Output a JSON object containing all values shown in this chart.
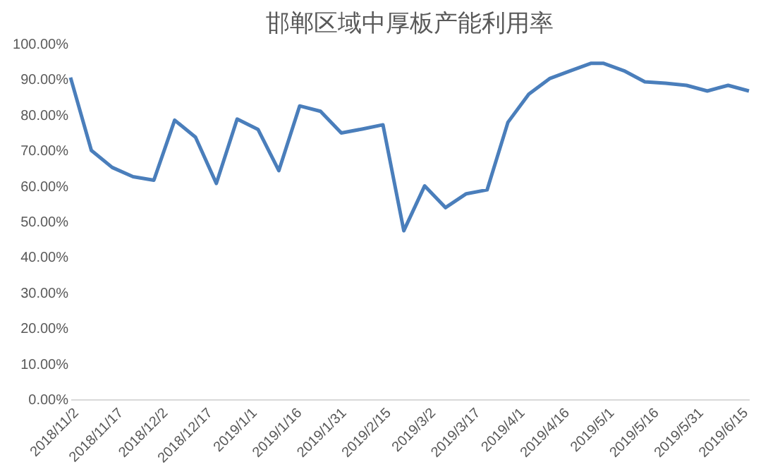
{
  "chart_data": {
    "type": "line",
    "title": "邯郸区域中厚板产能利用率",
    "x": [
      "2018-11-02",
      "2018-11-09",
      "2018-11-16",
      "2018-11-23",
      "2018-11-30",
      "2018-12-07",
      "2018-12-14",
      "2018-12-21",
      "2018-12-28",
      "2019-01-04",
      "2019-01-11",
      "2019-01-18",
      "2019-01-25",
      "2019-02-01",
      "2019-02-08",
      "2019-02-15",
      "2019-02-22",
      "2019-03-01",
      "2019-03-08",
      "2019-03-15",
      "2019-03-22",
      "2019-03-29",
      "2019-04-05",
      "2019-04-12",
      "2019-04-19",
      "2019-04-26",
      "2019-04-30",
      "2019-05-07",
      "2019-05-14",
      "2019-05-21",
      "2019-05-28",
      "2019-06-04",
      "2019-06-11",
      "2019-06-18"
    ],
    "series": [
      {
        "color": "#4a7ebb",
        "values": [
          90.5,
          70.0,
          65.2,
          62.6,
          61.6,
          78.5,
          73.7,
          60.7,
          78.8,
          75.9,
          64.3,
          82.5,
          81.0,
          74.9,
          76.0,
          77.2,
          47.4,
          60.0,
          53.9,
          57.8,
          58.9,
          77.9,
          85.8,
          90.2,
          92.4,
          94.5,
          94.5,
          92.4,
          89.3,
          88.9,
          88.3,
          86.7,
          88.3,
          86.7
        ]
      }
    ],
    "xlim": [
      "2018-11-02",
      "2019-06-18"
    ],
    "xticks": [
      {
        "value": "2018-11-02",
        "label": "2018/11/2"
      },
      {
        "value": "2018-11-17",
        "label": "2018/11/17"
      },
      {
        "value": "2018-12-02",
        "label": "2018/12/2"
      },
      {
        "value": "2018-12-17",
        "label": "2018/12/17"
      },
      {
        "value": "2019-01-01",
        "label": "2019/1/1"
      },
      {
        "value": "2019-01-16",
        "label": "2019/1/16"
      },
      {
        "value": "2019-01-31",
        "label": "2019/1/31"
      },
      {
        "value": "2019-02-15",
        "label": "2019/2/15"
      },
      {
        "value": "2019-03-02",
        "label": "2019/3/2"
      },
      {
        "value": "2019-03-17",
        "label": "2019/3/17"
      },
      {
        "value": "2019-04-01",
        "label": "2019/4/1"
      },
      {
        "value": "2019-04-16",
        "label": "2019/4/16"
      },
      {
        "value": "2019-05-01",
        "label": "2019/5/1"
      },
      {
        "value": "2019-05-16",
        "label": "2019/5/16"
      },
      {
        "value": "2019-05-31",
        "label": "2019/5/31"
      },
      {
        "value": "2019-06-15",
        "label": "2019/6/15"
      }
    ],
    "ylim": [
      0,
      100
    ],
    "yticks": [
      {
        "value": 0,
        "label": "0.00%"
      },
      {
        "value": 10,
        "label": "10.00%"
      },
      {
        "value": 20,
        "label": "20.00%"
      },
      {
        "value": 30,
        "label": "30.00%"
      },
      {
        "value": 40,
        "label": "40.00%"
      },
      {
        "value": 50,
        "label": "50.00%"
      },
      {
        "value": 60,
        "label": "60.00%"
      },
      {
        "value": 70,
        "label": "70.00%"
      },
      {
        "value": 80,
        "label": "80.00%"
      },
      {
        "value": 90,
        "label": "90.00%"
      },
      {
        "value": 100,
        "label": "100.00%"
      }
    ],
    "grid": false,
    "marker": "none",
    "line_style": "solid"
  }
}
